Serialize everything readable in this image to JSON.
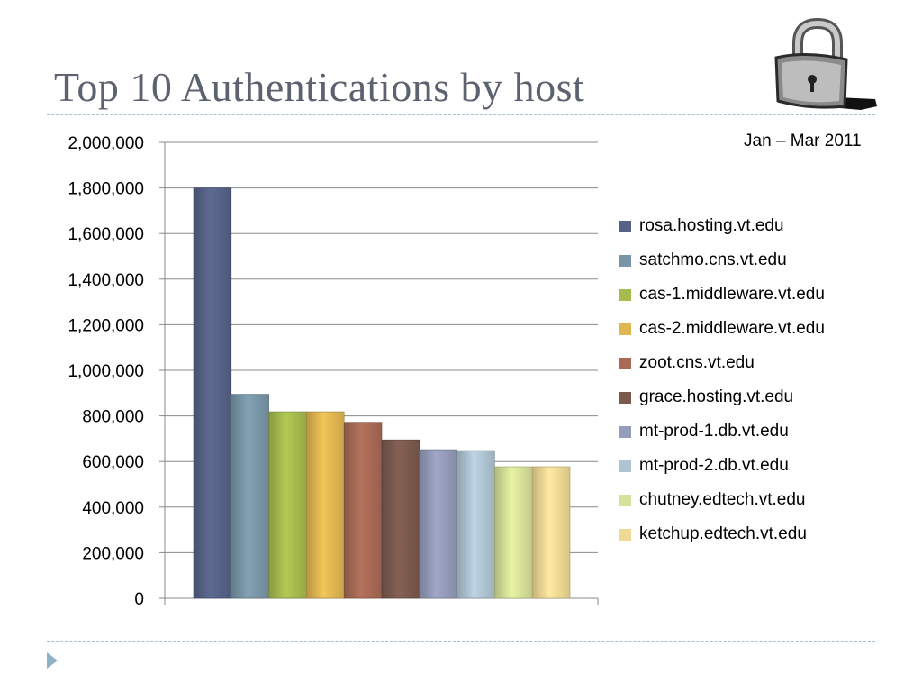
{
  "slide": {
    "title": "Top 10 Authentications by host",
    "lock_icon": "padlock-icon"
  },
  "chart_data": {
    "type": "bar",
    "title": "Top 10 Authentications by host",
    "subtitle": "Jan – Mar 2011",
    "xlabel": "",
    "ylabel": "",
    "ylim": [
      0,
      2000000
    ],
    "yticks": [
      0,
      200000,
      400000,
      600000,
      800000,
      1000000,
      1200000,
      1400000,
      1600000,
      1800000,
      2000000
    ],
    "ytick_labels": [
      "0",
      "200,000",
      "400,000",
      "600,000",
      "800,000",
      "1,000,000",
      "1,200,000",
      "1,400,000",
      "1,600,000",
      "1,800,000",
      "2,000,000"
    ],
    "grid": true,
    "legend_position": "right",
    "series": [
      {
        "name": "rosa.hosting.vt.edu",
        "value": 1800000,
        "color": "#566288"
      },
      {
        "name": "satchmo.cns.vt.edu",
        "value": 895000,
        "color": "#7896a8"
      },
      {
        "name": "cas-1.middleware.vt.edu",
        "value": 818000,
        "color": "#a6bb4e"
      },
      {
        "name": "cas-2.middleware.vt.edu",
        "value": 818000,
        "color": "#e0b651"
      },
      {
        "name": "zoot.cns.vt.edu",
        "value": 772000,
        "color": "#a86a55"
      },
      {
        "name": "grace.hosting.vt.edu",
        "value": 695000,
        "color": "#7b5a4e"
      },
      {
        "name": "mt-prod-1.db.vt.edu",
        "value": 652000,
        "color": "#949cba"
      },
      {
        "name": "mt-prod-2.db.vt.edu",
        "value": 648000,
        "color": "#aec4d3"
      },
      {
        "name": "chutney.edtech.vt.edu",
        "value": 577000,
        "color": "#d7e199"
      },
      {
        "name": "ketchup.edtech.vt.edu",
        "value": 577000,
        "color": "#f0d994"
      }
    ]
  }
}
